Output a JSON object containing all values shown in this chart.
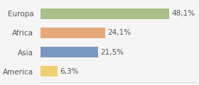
{
  "categories": [
    "Europa",
    "Africa",
    "Asia",
    "America"
  ],
  "values": [
    48.1,
    24.1,
    21.5,
    6.3
  ],
  "labels": [
    "48,1%",
    "24,1%",
    "21,5%",
    "6,3%"
  ],
  "colors": [
    "#a8bf8a",
    "#e8a97a",
    "#7a96c2",
    "#f0d070"
  ],
  "background_color": "#f5f5f5",
  "xlim": [
    0,
    58
  ],
  "bar_height": 0.55,
  "label_fontsize": 7.5,
  "category_fontsize": 7.5
}
